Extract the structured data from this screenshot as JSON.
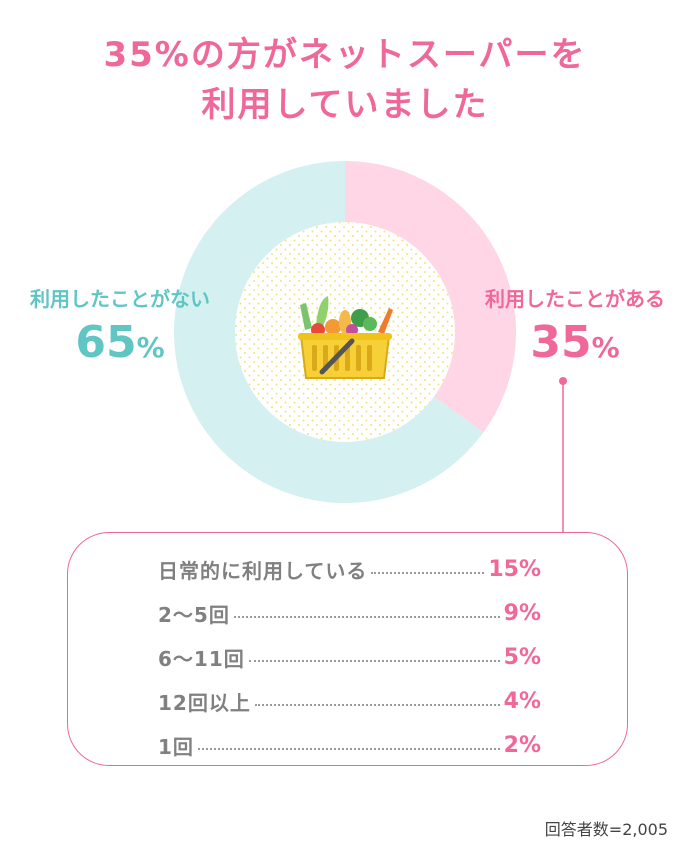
{
  "title": {
    "line1": "35%の方がネットスーパーを",
    "line2": "利用していました"
  },
  "chart_data": {
    "type": "pie",
    "slices": [
      {
        "label": "利用したことがある",
        "value": 35,
        "display": "35",
        "color": "#ffd6e6",
        "label_color": "#f0689a"
      },
      {
        "label": "利用したことがない",
        "value": 65,
        "display": "65",
        "color": "#d5f0f0",
        "label_color": "#5fc6c4"
      }
    ],
    "percent_sign": "%",
    "breakdown": [
      {
        "label": "日常的に利用している",
        "value": "15%"
      },
      {
        "label": "2～5回",
        "value": "9%"
      },
      {
        "label": "6～11回",
        "value": "5%"
      },
      {
        "label": "12回以上",
        "value": "4%"
      },
      {
        "label": "1回",
        "value": "2%"
      }
    ],
    "note": "回答者数=2,005"
  },
  "colors": {
    "accent_pink": "#f0689a",
    "accent_teal": "#5fc6c4",
    "basket_yellow": "#f7d038"
  },
  "center_icon": "shopping-basket-with-vegetables-icon"
}
